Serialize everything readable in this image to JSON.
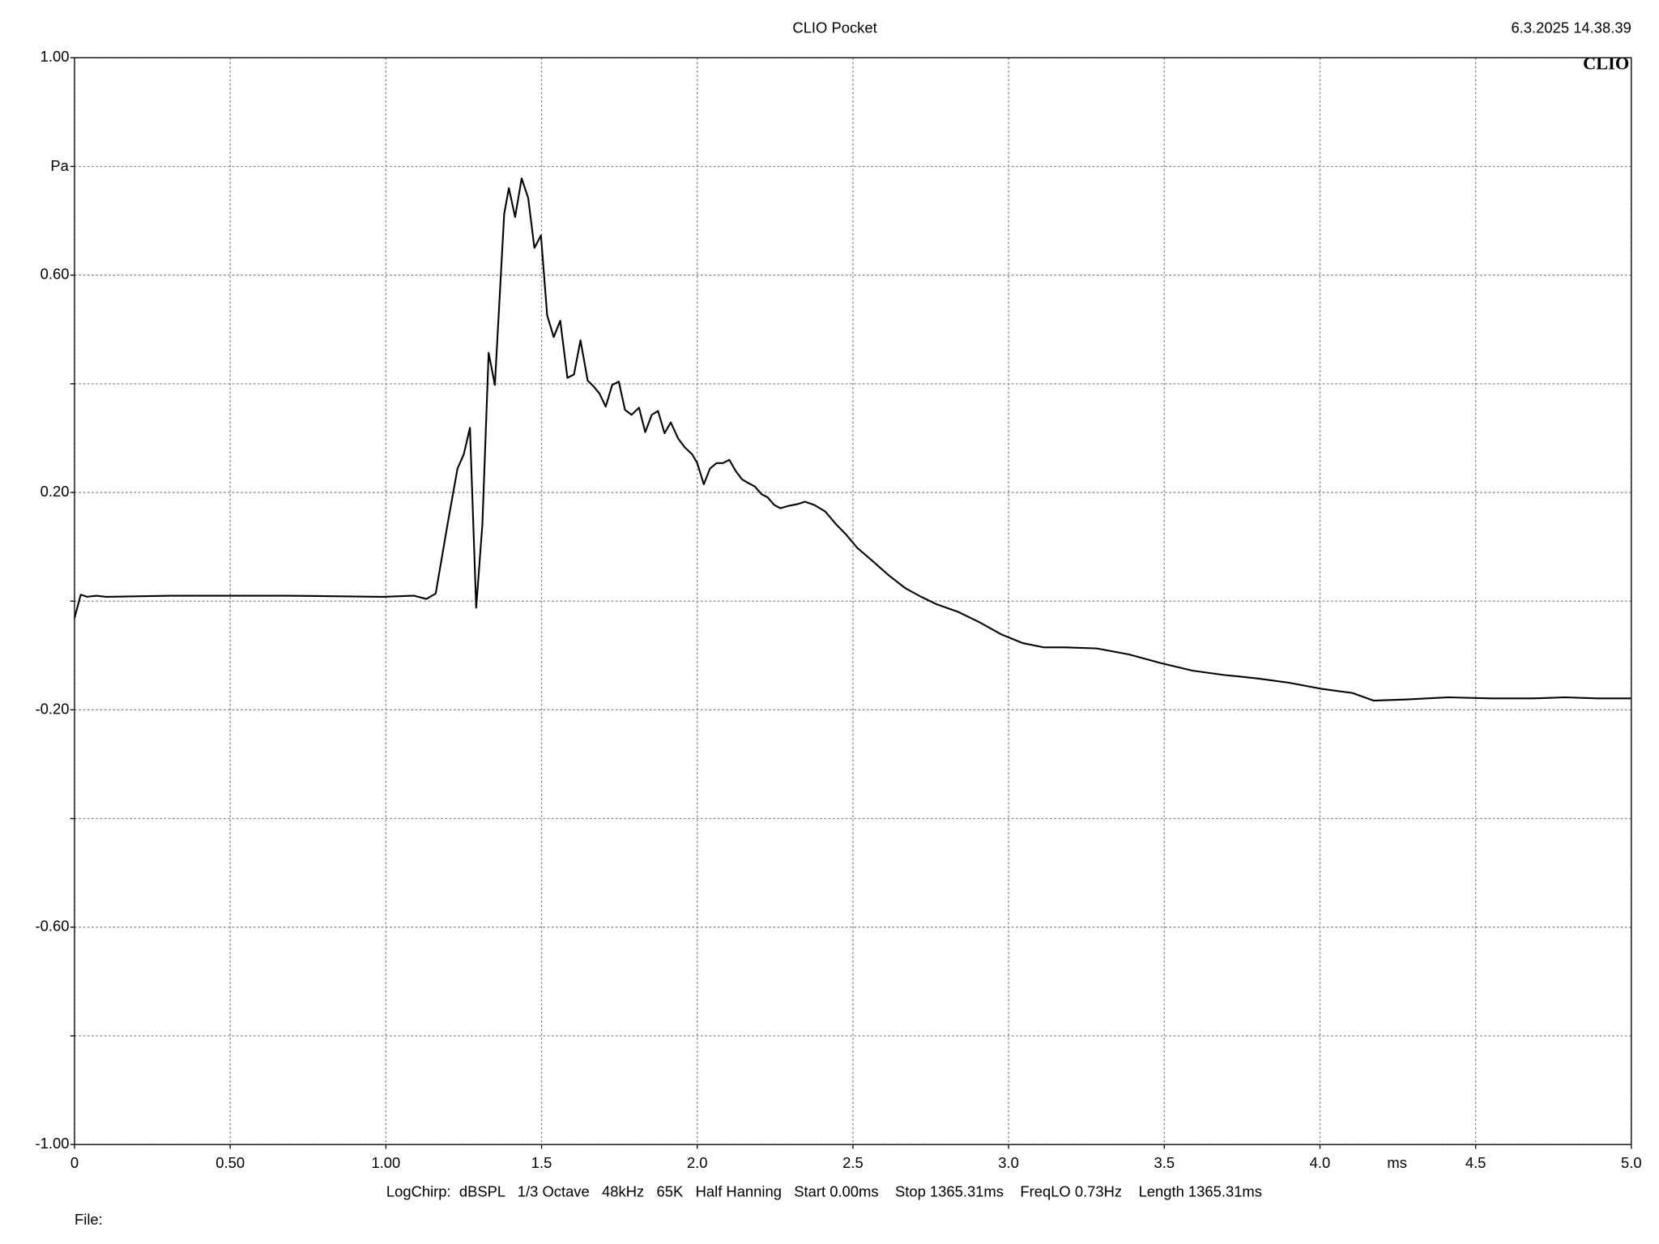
{
  "chart_data": {
    "type": "line",
    "title": "CLIO Pocket",
    "timestamp": "6.3.2025 14.38.39",
    "logo": "CLIO",
    "y_label": "Pa",
    "x_label": "ms",
    "footer": "LogChirp:  dBSPL   1/3 Octave   48kHz   65K   Half Hanning   Start 0.00ms    Stop 1365.31ms    FreqLO 0.73Hz    Length 1365.31ms",
    "file_label": "File:",
    "xlim": [
      0,
      5
    ],
    "ylim": [
      -1,
      1
    ],
    "grid": true,
    "xticks": [
      {
        "value": 0,
        "label": "0"
      },
      {
        "value": 0.5,
        "label": "0.50"
      },
      {
        "value": 1,
        "label": "1.00"
      },
      1.5,
      {
        "value": 2,
        "label": "2.0"
      },
      2.5,
      {
        "value": 3,
        "label": "3.0"
      },
      3.5,
      {
        "value": 4,
        "label": "4.0"
      },
      4.5,
      {
        "value": 5,
        "label": "5.0"
      }
    ],
    "yticks": [
      {
        "value": 1,
        "label": "1.00"
      },
      {
        "value": 0.8,
        "label": null
      },
      {
        "value": 0.6,
        "label": "0.60"
      },
      {
        "value": 0.4,
        "label": null
      },
      {
        "value": 0.2,
        "label": "0.20"
      },
      {
        "value": 0,
        "label": null
      },
      {
        "value": -0.2,
        "label": "-0.20"
      },
      {
        "value": -0.4,
        "label": null
      },
      {
        "value": -0.6,
        "label": "-0.60"
      },
      {
        "value": -0.8,
        "label": null
      },
      {
        "value": -1,
        "label": "-1.00"
      }
    ],
    "x": [
      0,
      0.02,
      0.04,
      0.07,
      0.1,
      0.31,
      0.68,
      0.99,
      1.09,
      1.13,
      1.16,
      1.2,
      1.23,
      1.25,
      1.27,
      1.29,
      1.31,
      1.33,
      1.35,
      1.38,
      1.395,
      1.415,
      1.436,
      1.457,
      1.477,
      1.498,
      1.518,
      1.539,
      1.56,
      1.583,
      1.604,
      1.625,
      1.648,
      1.669,
      1.686,
      1.706,
      1.727,
      1.748,
      1.768,
      1.789,
      1.813,
      1.833,
      1.854,
      1.874,
      1.895,
      1.915,
      1.939,
      1.96,
      1.984,
      2.0,
      2.021,
      2.041,
      2.062,
      2.082,
      2.103,
      2.123,
      2.144,
      2.165,
      2.185,
      2.206,
      2.226,
      2.247,
      2.267,
      2.291,
      2.325,
      2.346,
      2.376,
      2.411,
      2.445,
      2.479,
      2.514,
      2.565,
      2.616,
      2.668,
      2.719,
      2.77,
      2.839,
      2.907,
      2.976,
      3.044,
      3.112,
      3.181,
      3.283,
      3.386,
      3.489,
      3.591,
      3.694,
      3.796,
      3.899,
      4.001,
      4.104,
      4.172,
      4.275,
      4.412,
      4.549,
      4.685,
      4.788,
      4.891,
      5.0
    ],
    "series": [
      {
        "color": "#000000",
        "values": [
          -0.031,
          0.012,
          0.008,
          0.01,
          0.008,
          0.01,
          0.01,
          0.008,
          0.01,
          0.004,
          0.014,
          0.148,
          0.244,
          0.27,
          0.319,
          -0.012,
          0.142,
          0.457,
          0.398,
          0.713,
          0.76,
          0.707,
          0.778,
          0.742,
          0.65,
          0.673,
          0.526,
          0.486,
          0.516,
          0.411,
          0.417,
          0.48,
          0.406,
          0.394,
          0.382,
          0.358,
          0.398,
          0.404,
          0.352,
          0.343,
          0.356,
          0.311,
          0.343,
          0.35,
          0.309,
          0.329,
          0.299,
          0.283,
          0.27,
          0.254,
          0.215,
          0.244,
          0.254,
          0.254,
          0.26,
          0.24,
          0.224,
          0.217,
          0.211,
          0.197,
          0.191,
          0.177,
          0.171,
          0.175,
          0.179,
          0.183,
          0.177,
          0.165,
          0.142,
          0.122,
          0.098,
          0.073,
          0.047,
          0.024,
          0.008,
          -0.006,
          -0.02,
          -0.039,
          -0.061,
          -0.077,
          -0.085,
          -0.085,
          -0.087,
          -0.098,
          -0.114,
          -0.128,
          -0.136,
          -0.142,
          -0.15,
          -0.161,
          -0.169,
          -0.183,
          -0.181,
          -0.177,
          -0.179,
          -0.179,
          -0.177,
          -0.179,
          -0.179
        ]
      }
    ]
  }
}
